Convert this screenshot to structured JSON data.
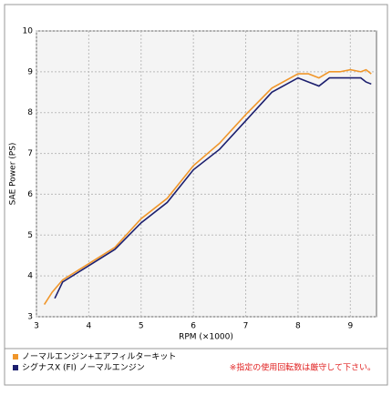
{
  "chart_data": {
    "type": "line",
    "xlabel": "RPM (×1000)",
    "ylabel": "SAE Power (PS)",
    "xlim": [
      3,
      9.5
    ],
    "xticks": [
      3,
      4,
      5,
      6,
      7,
      8,
      9
    ],
    "ylim": [
      3,
      10
    ],
    "yticks": [
      3,
      4,
      5,
      6,
      7,
      8,
      9,
      10
    ],
    "grid": true,
    "series": [
      {
        "name": "ノーマルエンジン+エアフィルターキット",
        "color": "#f0962a",
        "x": [
          3.15,
          3.3,
          3.5,
          4,
          4.5,
          5,
          5.5,
          6,
          6.5,
          7,
          7.5,
          8,
          8.2,
          8.4,
          8.6,
          8.8,
          9,
          9.2,
          9.3,
          9.4
        ],
        "values": [
          3.3,
          3.6,
          3.9,
          4.3,
          4.7,
          5.4,
          5.9,
          6.7,
          7.25,
          7.95,
          8.6,
          8.95,
          8.95,
          8.85,
          9.0,
          9.0,
          9.05,
          9.0,
          9.05,
          8.95
        ]
      },
      {
        "name": "シグナスX (FI) ノーマルエンジン",
        "color": "#1c1f6e",
        "x": [
          3.35,
          3.5,
          4,
          4.5,
          5,
          5.5,
          6,
          6.5,
          7,
          7.5,
          8,
          8.2,
          8.4,
          8.6,
          8.8,
          9,
          9.2,
          9.3,
          9.4
        ],
        "values": [
          3.45,
          3.85,
          4.25,
          4.65,
          5.3,
          5.8,
          6.6,
          7.1,
          7.8,
          8.5,
          8.85,
          8.75,
          8.65,
          8.85,
          8.85,
          8.85,
          8.85,
          8.75,
          8.7
        ]
      }
    ],
    "note": "※指定の使用回転数は厳守して下さい。"
  }
}
